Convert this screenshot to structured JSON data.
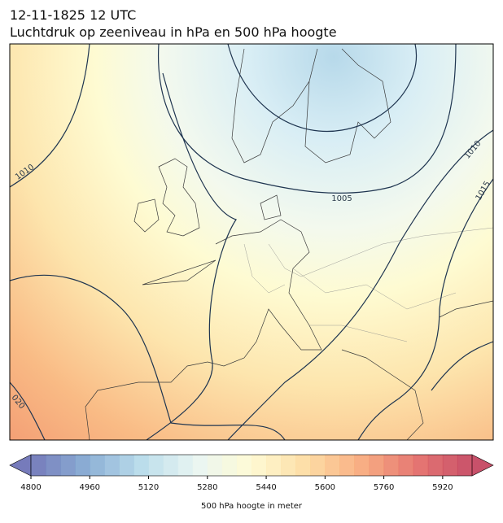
{
  "header": {
    "date": "12-11-1825 12 UTC",
    "title": "Luchtdruk op zeeniveau in hPa en 500 hPa hoogte"
  },
  "map": {
    "contour_labels": [
      "1010",
      "1005",
      "1010",
      "1015",
      "020"
    ]
  },
  "colorbar": {
    "range": [
      4800,
      6000
    ],
    "ticks": [
      4800,
      4960,
      5120,
      5280,
      5440,
      5600,
      5760,
      5920
    ],
    "label": "500 hPa hoogte in meter"
  }
}
